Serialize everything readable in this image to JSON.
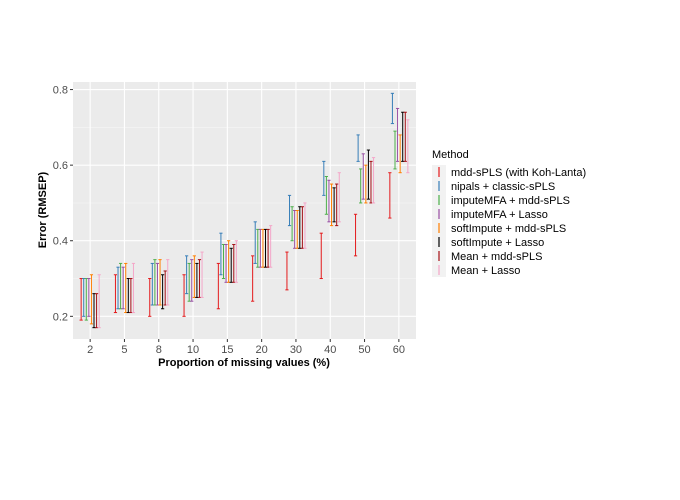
{
  "chart_data": {
    "type": "errorbar",
    "xlabel": "Proportion of missing values (%)",
    "ylabel": "Error (RMSEP)",
    "categories": [
      "2",
      "5",
      "8",
      "10",
      "15",
      "20",
      "30",
      "40",
      "50",
      "60"
    ],
    "ylim": [
      0.14,
      0.82
    ],
    "yticks": [
      0.2,
      0.4,
      0.6,
      0.8
    ],
    "yticklabels": [
      "0.2",
      "0.4",
      "0.6",
      "0.8"
    ],
    "grid": true,
    "legend_position": "right",
    "legend_title": "Method",
    "series": [
      {
        "name": "mdd-sPLS (with Koh-Lanta)",
        "color": "#e41a1c",
        "ranges": [
          [
            0.19,
            0.3
          ],
          [
            0.21,
            0.31
          ],
          [
            0.2,
            0.3
          ],
          [
            0.2,
            0.31
          ],
          [
            0.22,
            0.34
          ],
          [
            0.24,
            0.36
          ],
          [
            0.27,
            0.37
          ],
          [
            0.3,
            0.42
          ],
          [
            0.36,
            0.47
          ],
          [
            0.46,
            0.58
          ]
        ]
      },
      {
        "name": "nipals + classic-sPLS",
        "color": "#377eb8",
        "ranges": [
          [
            0.2,
            0.3
          ],
          [
            0.22,
            0.33
          ],
          [
            0.23,
            0.34
          ],
          [
            0.26,
            0.36
          ],
          [
            0.31,
            0.42
          ],
          [
            0.34,
            0.45
          ],
          [
            0.44,
            0.52
          ],
          [
            0.52,
            0.61
          ],
          [
            0.61,
            0.68
          ],
          [
            0.71,
            0.79
          ]
        ]
      },
      {
        "name": "imputeMFA + mdd-sPLS",
        "color": "#4daf4a",
        "ranges": [
          [
            0.19,
            0.3
          ],
          [
            0.22,
            0.34
          ],
          [
            0.23,
            0.35
          ],
          [
            0.24,
            0.34
          ],
          [
            0.3,
            0.39
          ],
          [
            0.33,
            0.43
          ],
          [
            0.4,
            0.49
          ],
          [
            0.47,
            0.57
          ],
          [
            0.5,
            0.59
          ],
          [
            0.59,
            0.69
          ]
        ]
      },
      {
        "name": "imputeMFA + Lasso",
        "color": "#984ea3",
        "ranges": [
          [
            0.2,
            0.3
          ],
          [
            0.22,
            0.33
          ],
          [
            0.23,
            0.34
          ],
          [
            0.24,
            0.35
          ],
          [
            0.29,
            0.39
          ],
          [
            0.33,
            0.43
          ],
          [
            0.38,
            0.48
          ],
          [
            0.45,
            0.56
          ],
          [
            0.51,
            0.63
          ],
          [
            0.61,
            0.75
          ]
        ]
      },
      {
        "name": "softImpute + mdd-sPLS",
        "color": "#ff7f00",
        "ranges": [
          [
            0.18,
            0.31
          ],
          [
            0.21,
            0.34
          ],
          [
            0.23,
            0.35
          ],
          [
            0.25,
            0.36
          ],
          [
            0.29,
            0.4
          ],
          [
            0.33,
            0.43
          ],
          [
            0.38,
            0.48
          ],
          [
            0.44,
            0.55
          ],
          [
            0.5,
            0.6
          ],
          [
            0.58,
            0.68
          ]
        ]
      },
      {
        "name": "softImpute + Lasso",
        "color": "#000000",
        "ranges": [
          [
            0.17,
            0.26
          ],
          [
            0.21,
            0.3
          ],
          [
            0.22,
            0.31
          ],
          [
            0.25,
            0.34
          ],
          [
            0.29,
            0.38
          ],
          [
            0.33,
            0.43
          ],
          [
            0.38,
            0.49
          ],
          [
            0.45,
            0.54
          ],
          [
            0.51,
            0.64
          ],
          [
            0.61,
            0.74
          ]
        ]
      },
      {
        "name": "Mean + mdd-sPLS",
        "color": "#a50f15",
        "ranges": [
          [
            0.17,
            0.26
          ],
          [
            0.21,
            0.3
          ],
          [
            0.23,
            0.32
          ],
          [
            0.25,
            0.35
          ],
          [
            0.29,
            0.39
          ],
          [
            0.33,
            0.43
          ],
          [
            0.38,
            0.49
          ],
          [
            0.44,
            0.55
          ],
          [
            0.5,
            0.61
          ],
          [
            0.61,
            0.74
          ]
        ]
      },
      {
        "name": "Mean + Lasso",
        "color": "#f4a6c8",
        "ranges": [
          [
            0.17,
            0.31
          ],
          [
            0.21,
            0.34
          ],
          [
            0.23,
            0.35
          ],
          [
            0.25,
            0.37
          ],
          [
            0.29,
            0.4
          ],
          [
            0.33,
            0.44
          ],
          [
            0.38,
            0.5
          ],
          [
            0.45,
            0.58
          ],
          [
            0.5,
            0.62
          ],
          [
            0.58,
            0.72
          ]
        ]
      }
    ]
  }
}
